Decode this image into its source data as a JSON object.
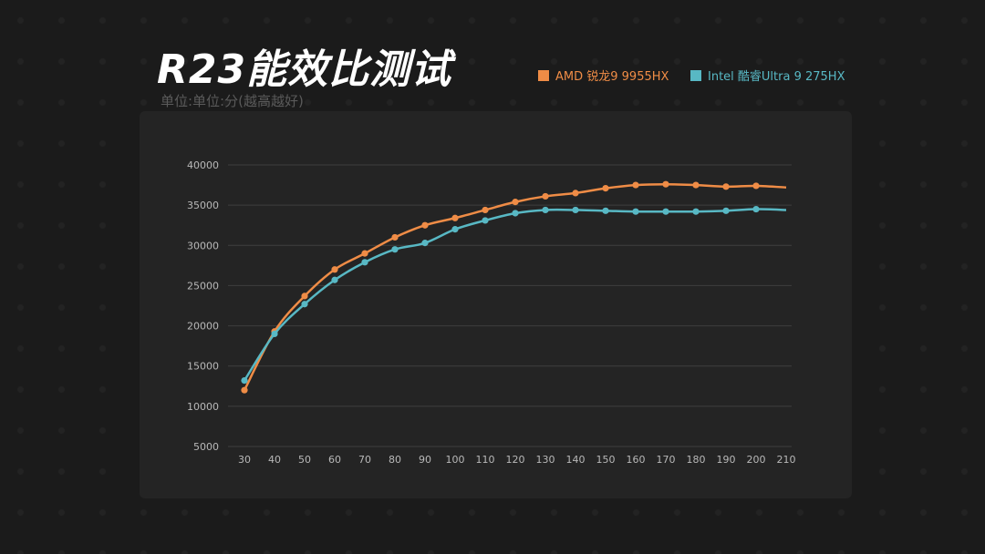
{
  "title": "R23能效比测试",
  "unit_label": "单位:单位:分(越高越好)",
  "colors": {
    "amd": "#ef8c46",
    "intel": "#58b8c4",
    "grid": "#3e3e3e"
  },
  "chart_data": {
    "type": "line",
    "title": "R23能效比测试",
    "xlabel": "",
    "ylabel": "单位:单位:分(越高越好)",
    "xlim": [
      30,
      210
    ],
    "ylim": [
      5000,
      40000
    ],
    "x_ticks": [
      30,
      40,
      50,
      60,
      70,
      80,
      90,
      100,
      110,
      120,
      130,
      140,
      150,
      160,
      170,
      180,
      190,
      200,
      210
    ],
    "y_ticks": [
      5000,
      10000,
      15000,
      20000,
      25000,
      30000,
      35000,
      40000
    ],
    "legend_position": "top-right",
    "grid": true,
    "series": [
      {
        "name": "AMD 锐龙9 9955HX",
        "color": "#ef8c46",
        "x": [
          30,
          40,
          50,
          60,
          70,
          80,
          90,
          100,
          110,
          120,
          130,
          140,
          150,
          160,
          170,
          180,
          190,
          200,
          210
        ],
        "y": [
          12000,
          19300,
          23700,
          27000,
          29000,
          31000,
          32500,
          33400,
          34400,
          35400,
          36100,
          36500,
          37100,
          37500,
          37600,
          37500,
          37300,
          37400,
          37200
        ]
      },
      {
        "name": "Intel 酷睿Ultra 9 275HX",
        "color": "#58b8c4",
        "x": [
          30,
          40,
          50,
          60,
          70,
          80,
          90,
          100,
          110,
          120,
          130,
          140,
          150,
          160,
          170,
          180,
          190,
          200,
          210
        ],
        "y": [
          13200,
          19000,
          22700,
          25700,
          27900,
          29500,
          30300,
          32000,
          33100,
          34000,
          34400,
          34400,
          34300,
          34200,
          34200,
          34200,
          34300,
          34500,
          34400
        ]
      }
    ]
  }
}
